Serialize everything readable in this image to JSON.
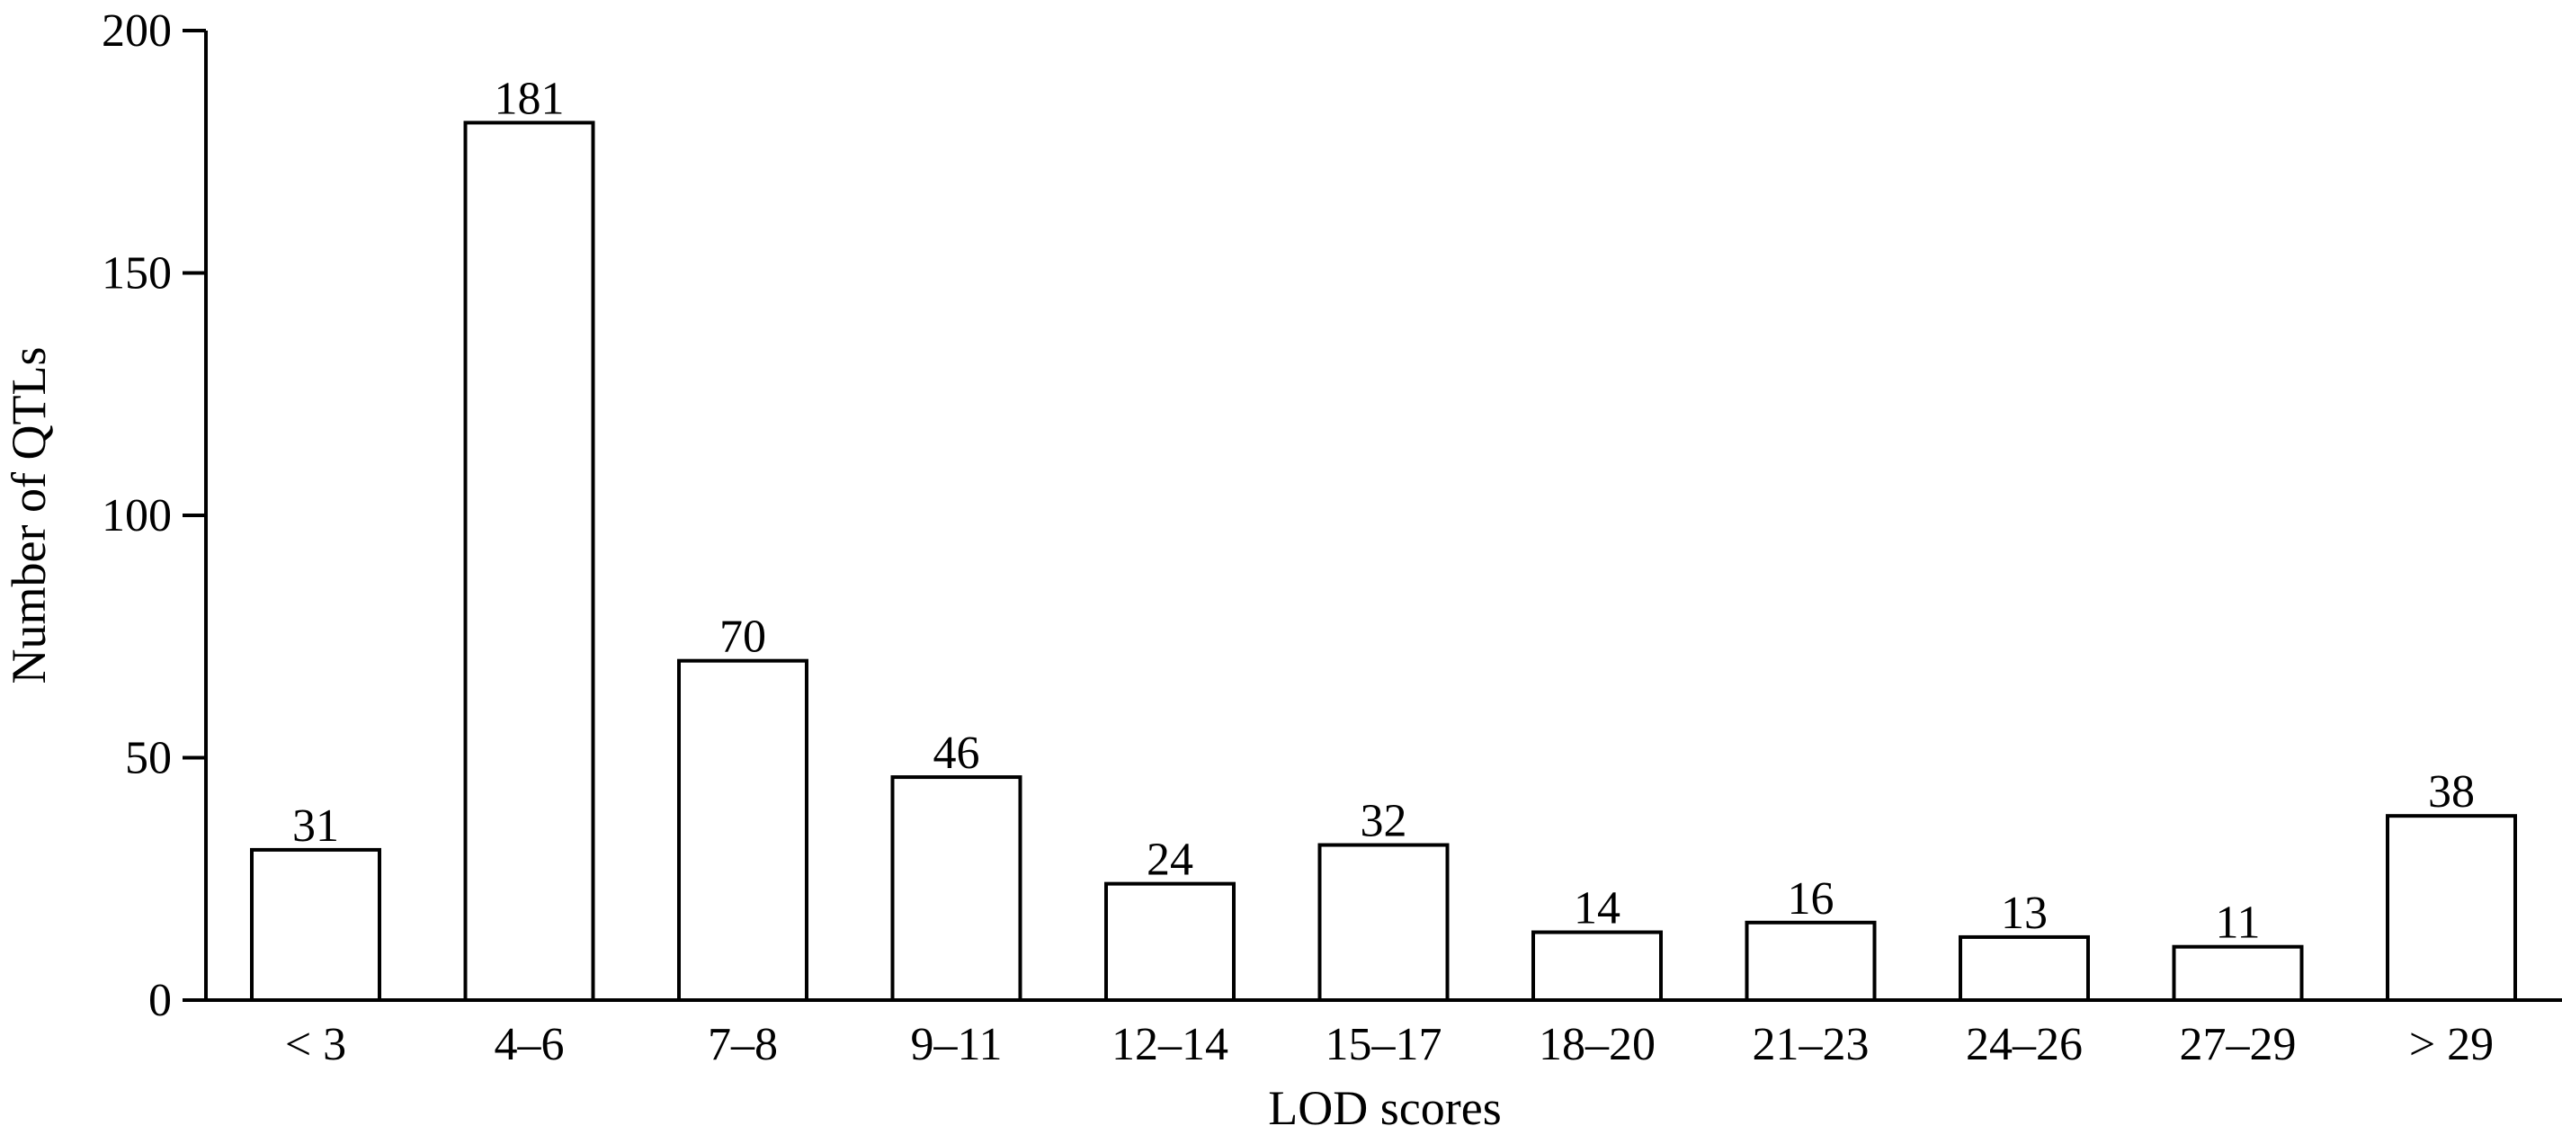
{
  "chart_data": {
    "type": "bar",
    "title": "",
    "xlabel": "LOD scores",
    "ylabel": "Number of QTLs",
    "categories": [
      "< 3",
      "4–6",
      "7–8",
      "9–11",
      "12–14",
      "15–17",
      "18–20",
      "21–23",
      "24–26",
      "27–29",
      "> 29"
    ],
    "values": [
      31,
      181,
      70,
      46,
      24,
      32,
      14,
      16,
      13,
      11,
      38
    ],
    "data_labels": [
      "31",
      "181",
      "70",
      "46",
      "24",
      "32",
      "14",
      "16",
      "13",
      "11",
      "38"
    ],
    "ylim": [
      0,
      200
    ],
    "yticks": [
      0,
      50,
      100,
      150,
      200
    ],
    "ytick_labels": [
      "0",
      "50",
      "100",
      "150",
      "200"
    ],
    "grid": false,
    "legend": "none",
    "bar_fill": "#ffffff",
    "bar_stroke": "#000000"
  }
}
